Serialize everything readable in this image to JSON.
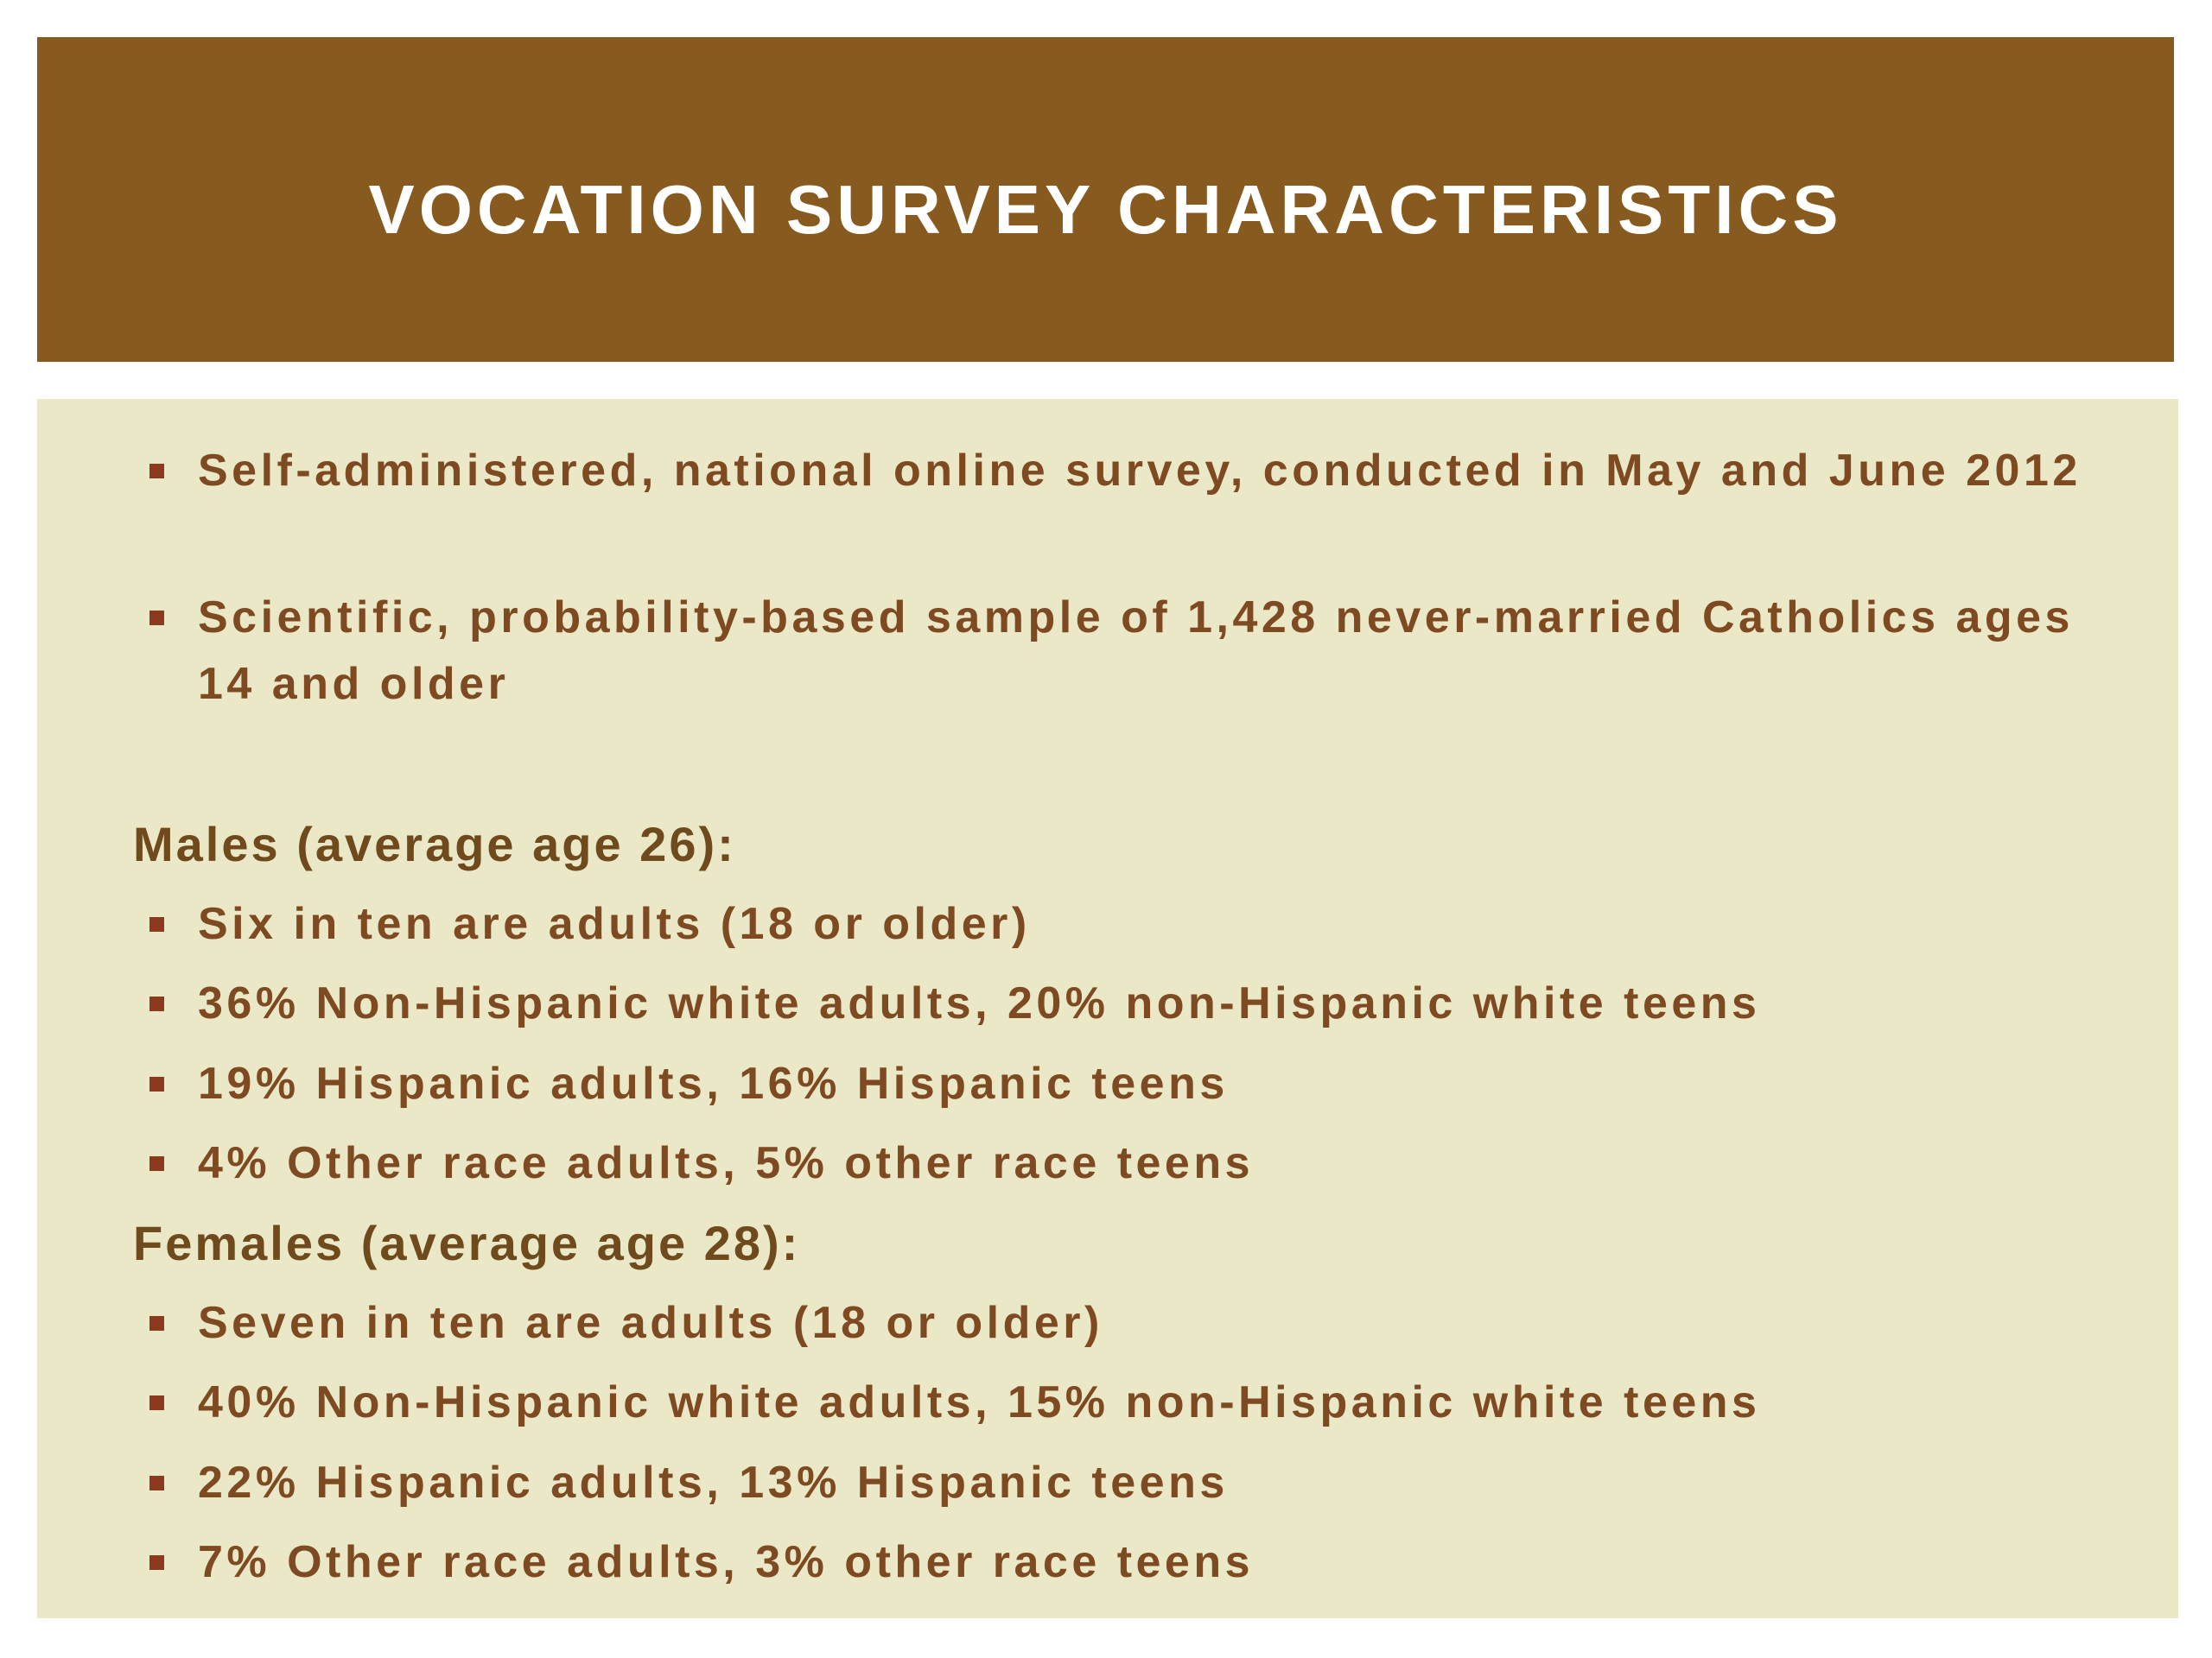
{
  "header": {
    "title": "VOCATION SURVEY CHARACTERISTICS"
  },
  "intro": [
    "Self-administered, national online survey, conducted in May and June 2012",
    "Scientific, probability-based sample of 1,428 never-married Catholics ages 14 and older"
  ],
  "sections": [
    {
      "heading": "Males (average age 26):",
      "items": [
        "Six in ten are adults (18 or older)",
        "36% Non-Hispanic white adults, 20% non-Hispanic white teens",
        "19% Hispanic adults, 16% Hispanic teens",
        "4% Other race adults, 5% other race teens"
      ]
    },
    {
      "heading": "Females (average age 28):",
      "items": [
        "Seven in ten are adults (18 or older)",
        "40% Non-Hispanic white adults, 15% non-Hispanic white teens",
        "22% Hispanic adults, 13% Hispanic teens",
        "7% Other race adults, 3% other race teens"
      ]
    }
  ]
}
